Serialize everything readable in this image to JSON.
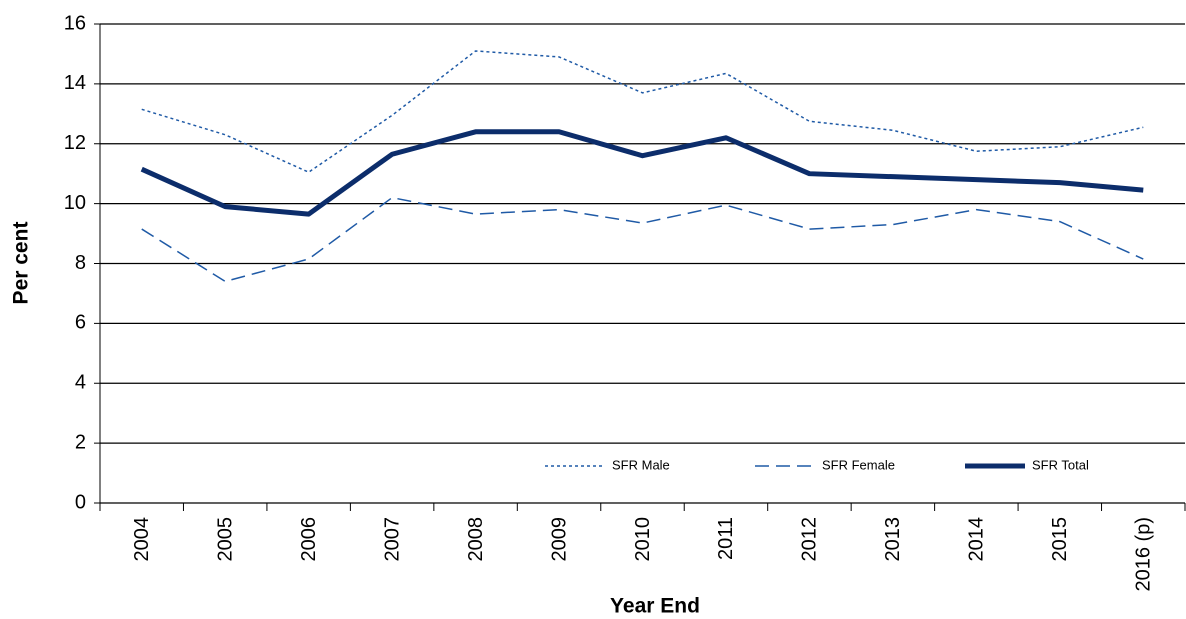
{
  "chart_data": {
    "type": "line",
    "x_label": "Year End",
    "y_label": "Per cent",
    "categories": [
      "2004",
      "2005",
      "2006",
      "2007",
      "2008",
      "2009",
      "2010",
      "2011",
      "2012",
      "2013",
      "2014",
      "2015",
      "2016 (p)"
    ],
    "series": [
      {
        "name": "SFR Male",
        "color": "#1f5aa6",
        "line_style": "dotted",
        "values": [
          13.15,
          12.3,
          11.05,
          12.95,
          15.1,
          14.9,
          13.7,
          14.35,
          12.75,
          12.45,
          11.75,
          11.9,
          12.55
        ]
      },
      {
        "name": "SFR Female",
        "color": "#1f5aa6",
        "line_style": "dashed",
        "values": [
          9.15,
          7.4,
          8.15,
          10.2,
          9.65,
          9.8,
          9.35,
          9.95,
          9.15,
          9.3,
          9.8,
          9.4,
          8.15
        ]
      },
      {
        "name": "SFR Total",
        "color": "#0c2d6b",
        "line_style": "thick",
        "values": [
          11.15,
          9.9,
          9.65,
          11.65,
          12.4,
          12.4,
          11.6,
          12.2,
          11.0,
          10.9,
          10.8,
          10.7,
          10.45
        ]
      }
    ],
    "ylim": [
      0,
      16
    ],
    "yticks": [
      0,
      2,
      4,
      6,
      8,
      10,
      12,
      14,
      16
    ],
    "grid": true,
    "legend": "bottom-right"
  }
}
